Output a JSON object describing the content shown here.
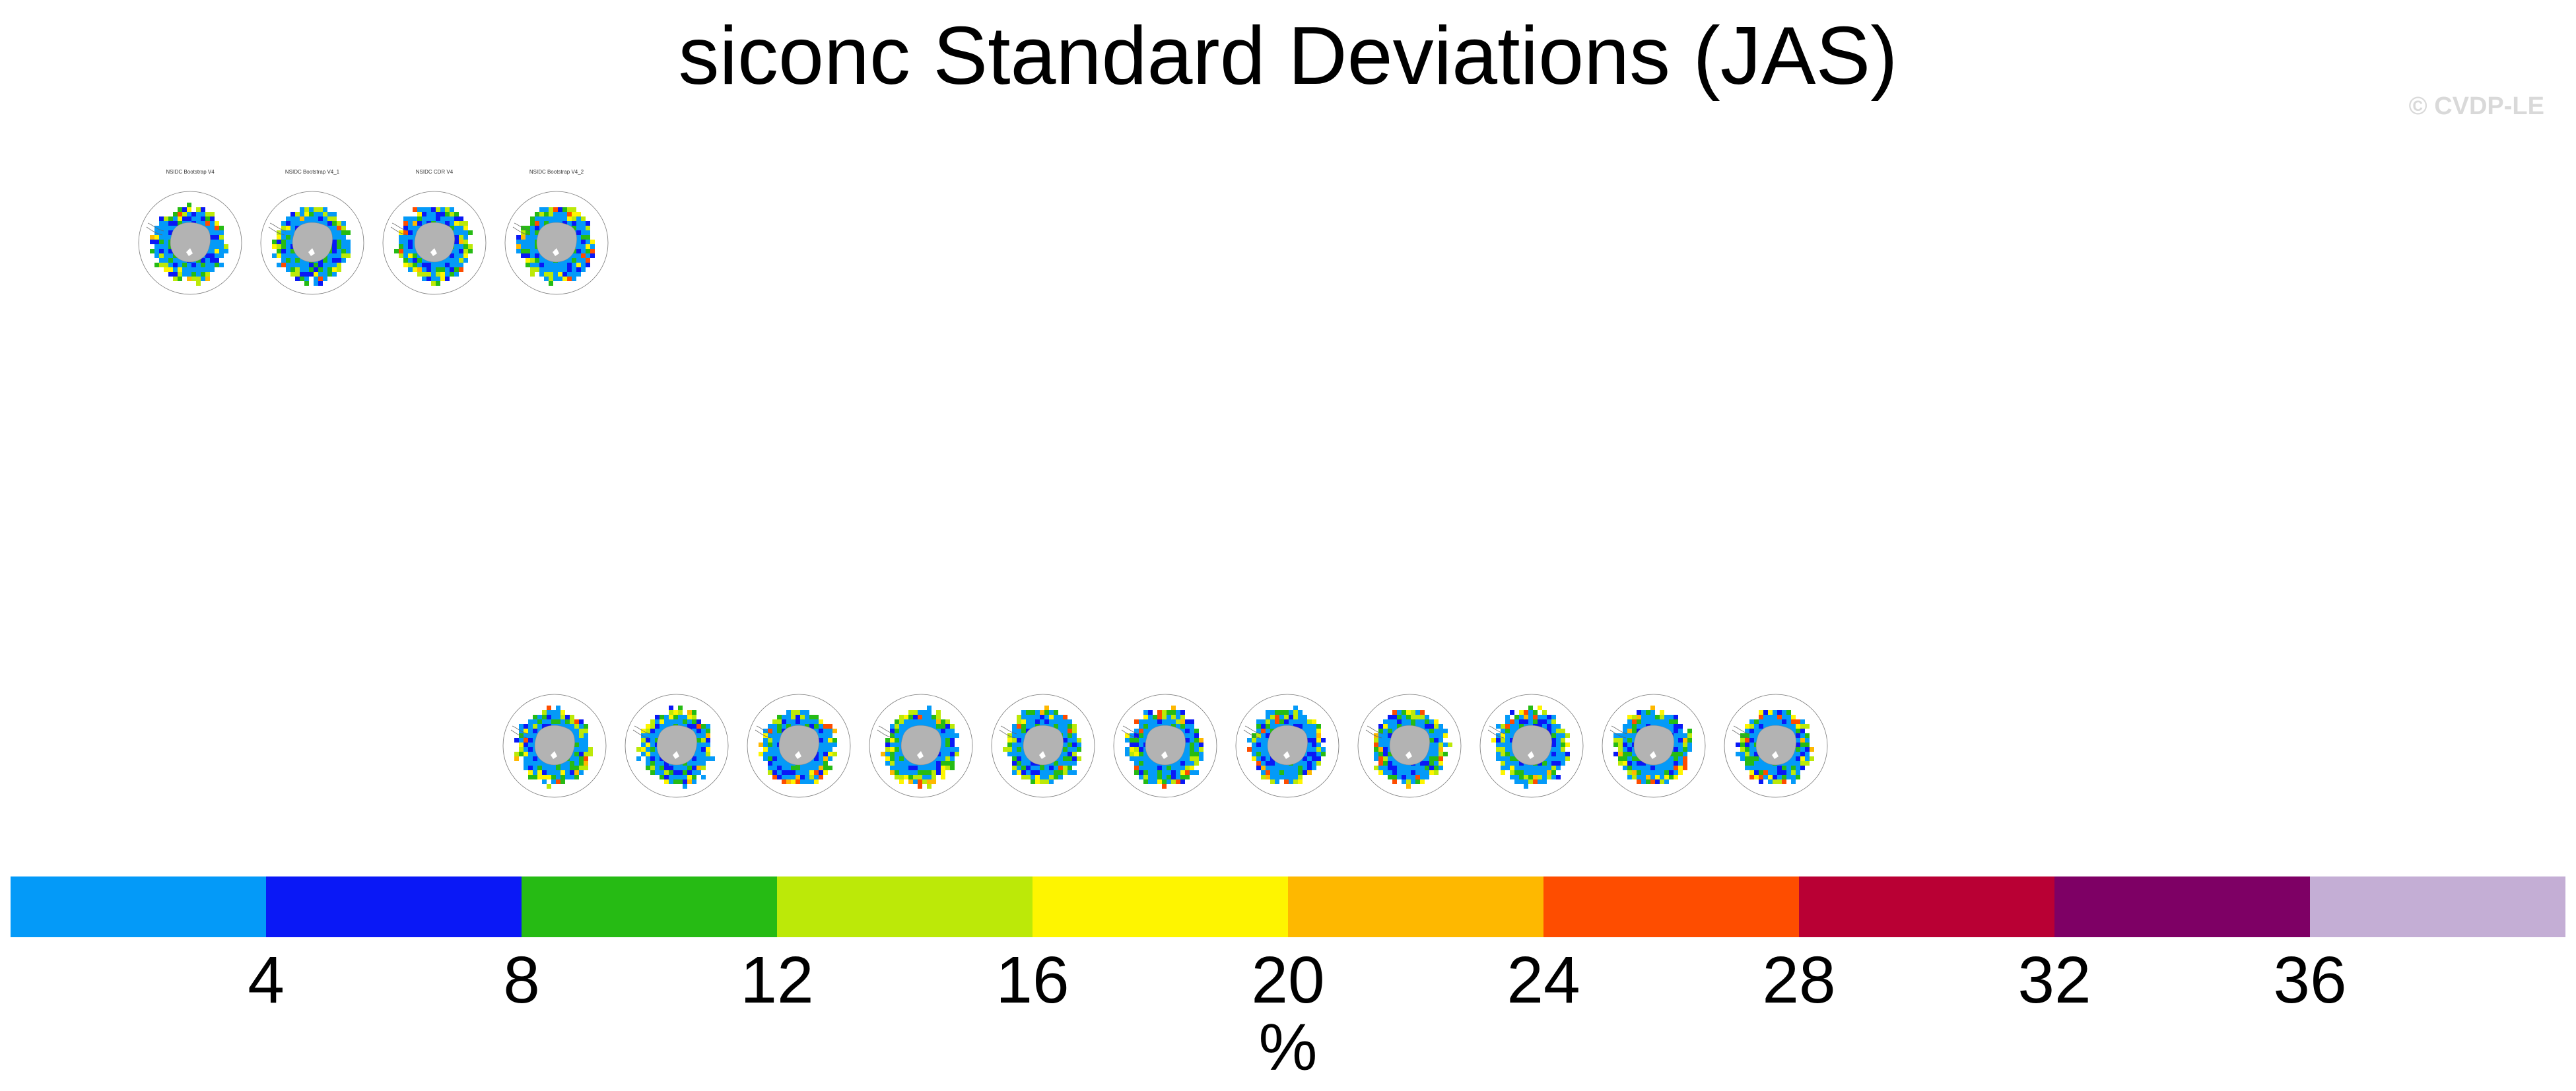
{
  "title": "siconc Standard Deviations (JAS)",
  "watermark": "© CVDP-LE",
  "chart_data": {
    "type": "heatmap",
    "title": "siconc Standard Deviations (JAS)",
    "panels_row1_count": 4,
    "panels_row2_count": 11,
    "row1_titles": [
      "NSIDC Bootstrap V4",
      "NSIDC Bootstrap V4_1",
      "NSIDC CDR V4",
      "NSIDC Bootstrap V4_2"
    ],
    "colorbar": {
      "units": "%",
      "levels": [
        4,
        8,
        12,
        16,
        20,
        24,
        28,
        32,
        36
      ],
      "tick_labels": [
        "4",
        "8",
        "12",
        "16",
        "20",
        "24",
        "28",
        "32",
        "36"
      ],
      "colors": [
        "#049af8",
        "#0a18f6",
        "#26bb14",
        "#bce908",
        "#fef500",
        "#feb800",
        "#fe4d00",
        "#b90034",
        "#7e0065",
        "#c4aed5"
      ]
    },
    "land_color": "#b3b3b3"
  }
}
